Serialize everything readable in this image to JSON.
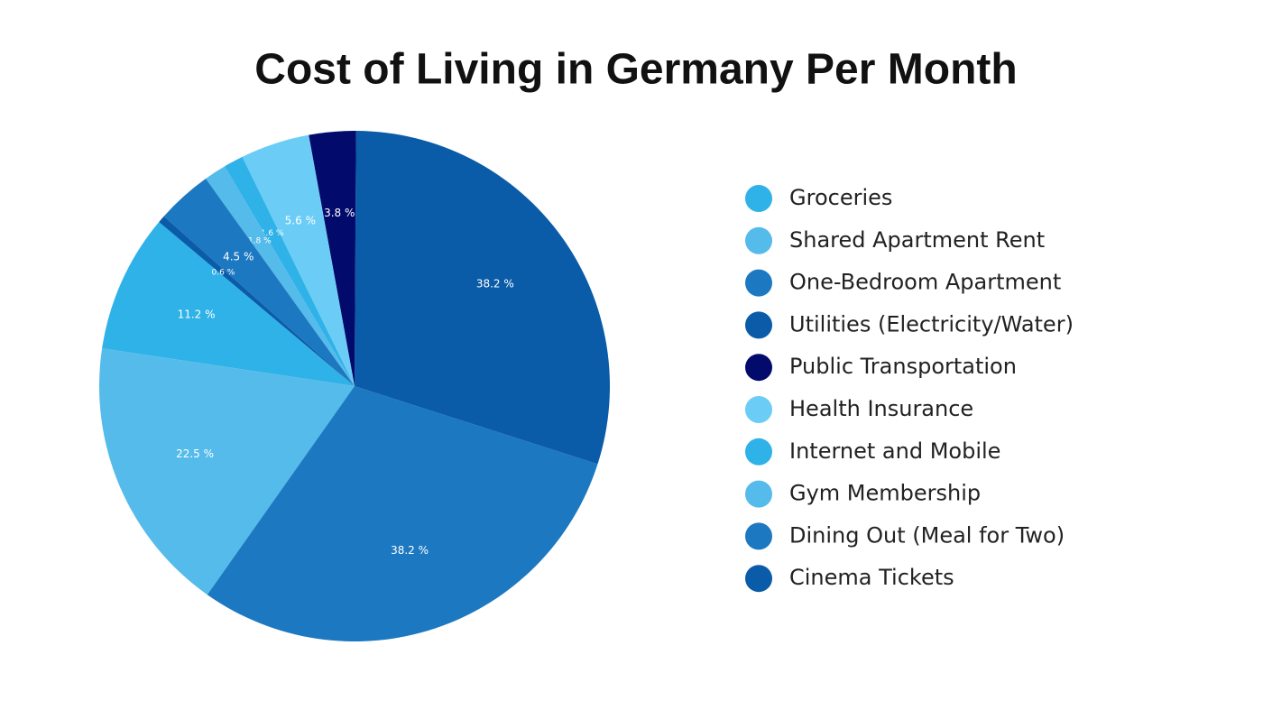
{
  "chart_data": {
    "type": "pie",
    "title": "Cost of Living in Germany Per Month",
    "categories": [
      "Groceries",
      "Shared Apartment Rent",
      "One-Bedroom Apartment",
      "Utilities (Electricity/Water)",
      "Public Transportation",
      "Health Insurance",
      "Internet and Mobile",
      "Gym Membership",
      "Dining Out (Meal for Two)",
      "Cinema Tickets"
    ],
    "values": [
      11.2,
      22.5,
      38.2,
      38.2,
      3.8,
      5.6,
      1.6,
      1.8,
      4.5,
      0.6
    ],
    "value_labels": [
      "11.2 %",
      "22.5 %",
      "38.2 %",
      "38.2 %",
      "3.8 %",
      "5.6 %",
      "1.6 %",
      "1.8 %",
      "4.5 %",
      "0.6 %"
    ],
    "colors": [
      "#2fb2e8",
      "#55bbea",
      "#1c78c0",
      "#0a5ba8",
      "#020a6b",
      "#6bcdf5",
      "#2fb2e8",
      "#55bbea",
      "#1c78c0",
      "#0a5ba8"
    ],
    "legend": "right"
  }
}
